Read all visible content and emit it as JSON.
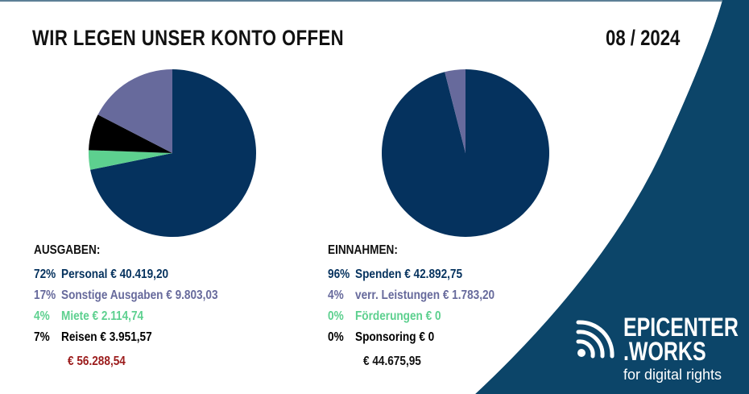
{
  "header": {
    "title": "WIR LEGEN UNSER KONTO OFFEN",
    "date": "08 / 2024"
  },
  "colors": {
    "navy": "#05325e",
    "lavender": "#676a9c",
    "mint": "#5dd08f",
    "black": "#000000",
    "total_red": "#9b1b1b",
    "corner": "#0c4569"
  },
  "chart_data": [
    {
      "type": "pie",
      "title": "AUSGABEN:",
      "slices": [
        {
          "label": "Personal",
          "percent": 72,
          "value": 40419.2,
          "amount": "€ 40.419,20",
          "color": "#05325e"
        },
        {
          "label": "Miete",
          "percent": 4,
          "value": 2114.74,
          "amount": "€ 2.114,74",
          "color": "#5dd08f"
        },
        {
          "label": "Reisen",
          "percent": 7,
          "value": 3951.57,
          "amount": "€ 3.951,57",
          "color": "#000000"
        },
        {
          "label": "Sonstige Ausgaben",
          "percent": 17,
          "value": 9803.03,
          "amount": "€ 9.803,03",
          "color": "#676a9c"
        }
      ],
      "total": "€ 56.288,54"
    },
    {
      "type": "pie",
      "title": "EINNAHMEN:",
      "slices": [
        {
          "label": "Spenden",
          "percent": 96,
          "value": 42892.75,
          "amount": "€ 42.892,75",
          "color": "#05325e"
        },
        {
          "label": "Förderungen",
          "percent": 0,
          "value": 0,
          "amount": "€ 0",
          "color": "#5dd08f"
        },
        {
          "label": "Sponsoring",
          "percent": 0,
          "value": 0,
          "amount": "€ 0",
          "color": "#000000"
        },
        {
          "label": "verr. Leistungen",
          "percent": 4,
          "value": 1783.2,
          "amount": "€ 1.783,20",
          "color": "#676a9c"
        }
      ],
      "total": "€ 44.675,95"
    }
  ],
  "ausgaben_legend": [
    {
      "pct": "72%",
      "text": "Personal € 40.419,20",
      "color": "#05325e"
    },
    {
      "pct": "17%",
      "text": "Sonstige Ausgaben € 9.803,03",
      "color": "#676a9c"
    },
    {
      "pct": "4%",
      "text": "Miete € 2.114,74",
      "color": "#5dd08f"
    },
    {
      "pct": "7%",
      "text": "Reisen € 3.951,57",
      "color": "#000000"
    }
  ],
  "einnahmen_legend": [
    {
      "pct": "96%",
      "text": "Spenden € 42.892,75",
      "color": "#05325e"
    },
    {
      "pct": "4%",
      "text": "verr. Leistungen € 1.783,20",
      "color": "#676a9c"
    },
    {
      "pct": "0%",
      "text": "Förderungen € 0",
      "color": "#5dd08f"
    },
    {
      "pct": "0%",
      "text": "Sponsoring € 0",
      "color": "#000000"
    }
  ],
  "logo": {
    "line1": "EPICENTER",
    "line2": ".WORKS",
    "tagline": "for digital rights",
    "icon": "signal-waves-icon"
  }
}
